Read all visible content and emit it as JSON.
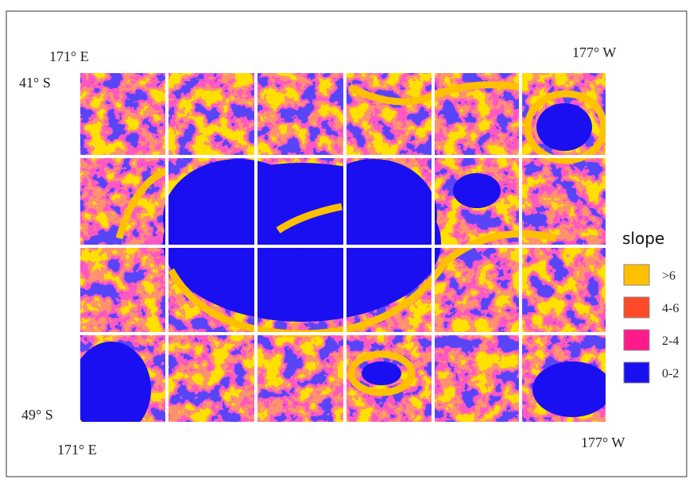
{
  "map": {
    "corners": {
      "top_left_lon": "171° E",
      "top_right_lon": "177° W",
      "top_lat": "41° S",
      "bottom_lat": "49° S",
      "bottom_left_lon": "171° E",
      "bottom_right_lon": "177° W"
    },
    "legend": {
      "title": "slope",
      "items": [
        {
          "label": ">6",
          "color": "#ffc000"
        },
        {
          "label": "4-6",
          "color": "#ff4a2a"
        },
        {
          "label": "2-4",
          "color": "#ff1a8c"
        },
        {
          "label": "0-2",
          "color": "#1a0ff0"
        }
      ]
    }
  }
}
